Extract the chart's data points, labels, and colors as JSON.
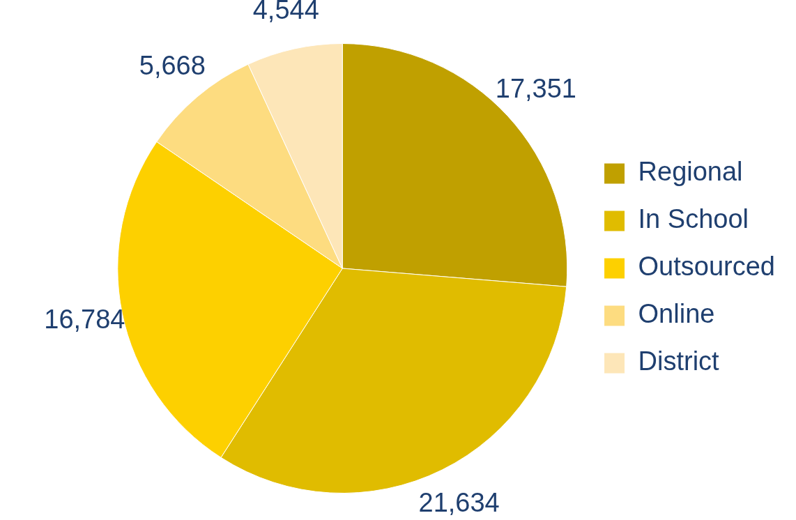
{
  "chart_data": {
    "type": "pie",
    "categories": [
      "Regional",
      "In School",
      "Outsourced",
      "Online",
      "District"
    ],
    "values": [
      17351,
      21634,
      16784,
      5668,
      4544
    ],
    "colors": [
      "#c0a000",
      "#e0bc00",
      "#fdd000",
      "#fddc80",
      "#fde6b8"
    ],
    "value_labels": [
      "17,351",
      "21,634",
      "16,784",
      "5,668",
      "4,544"
    ],
    "legend": "right"
  }
}
